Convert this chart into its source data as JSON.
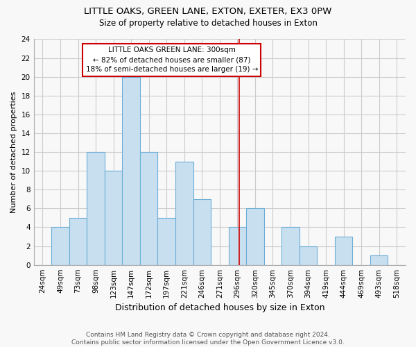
{
  "title": "LITTLE OAKS, GREEN LANE, EXTON, EXETER, EX3 0PW",
  "subtitle": "Size of property relative to detached houses in Exton",
  "xlabel": "Distribution of detached houses by size in Exton",
  "ylabel": "Number of detached properties",
  "footer_line1": "Contains HM Land Registry data © Crown copyright and database right 2024.",
  "footer_line2": "Contains public sector information licensed under the Open Government Licence v3.0.",
  "bin_labels": [
    "24sqm",
    "49sqm",
    "73sqm",
    "98sqm",
    "123sqm",
    "147sqm",
    "172sqm",
    "197sqm",
    "221sqm",
    "246sqm",
    "271sqm",
    "296sqm",
    "320sqm",
    "345sqm",
    "370sqm",
    "394sqm",
    "419sqm",
    "444sqm",
    "469sqm",
    "493sqm",
    "518sqm"
  ],
  "bar_values": [
    0,
    4,
    5,
    12,
    10,
    20,
    12,
    5,
    11,
    7,
    0,
    4,
    6,
    0,
    4,
    2,
    0,
    3,
    0,
    1,
    0
  ],
  "bar_color": "#c8dff0",
  "bar_edge_color": "#6baed6",
  "property_label": "LITTLE OAKS GREEN LANE: 300sqm",
  "pct_smaller": 82,
  "n_smaller": 87,
  "pct_larger": 18,
  "n_larger": 19,
  "vline_color": "#cc0000",
  "annotation_box_edge": "#cc0000",
  "ylim": [
    0,
    24
  ],
  "yticks": [
    0,
    2,
    4,
    6,
    8,
    10,
    12,
    14,
    16,
    18,
    20,
    22,
    24
  ],
  "background_color": "#f8f8f8",
  "grid_color": "#cccccc",
  "title_fontsize": 9.5,
  "subtitle_fontsize": 8.5,
  "ylabel_fontsize": 8,
  "xlabel_fontsize": 9,
  "tick_fontsize": 7.5,
  "annotation_fontsize": 7.5,
  "footer_fontsize": 6.5,
  "vline_x_index": 11.6
}
